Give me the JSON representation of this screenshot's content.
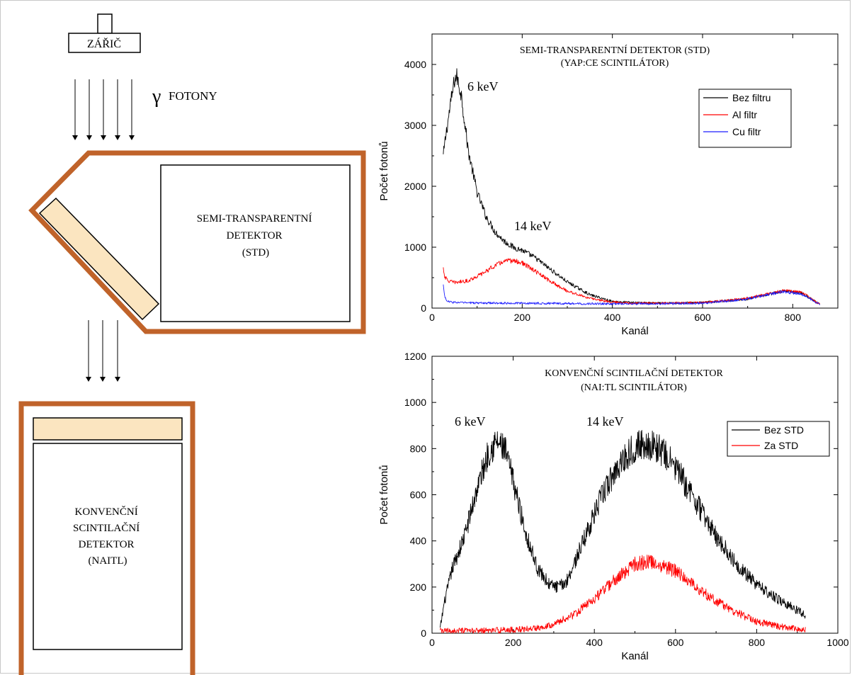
{
  "diagram": {
    "source_label": "ZÁŘIČ",
    "gamma_symbol": "γ",
    "gamma_label": "FOTONY",
    "std_box_lines": [
      "SEMI-TRANSPARENTNÍ",
      "DETEKTOR",
      "(STD)"
    ],
    "conv_box_lines": [
      "KONVENČNÍ",
      "SCINTILAČNÍ",
      "DETEKTOR",
      "(NAITL)"
    ],
    "colors": {
      "housing": "#c0632a",
      "crystal": "#fbe5c0",
      "outline": "#000000"
    }
  },
  "chart_data": [
    {
      "type": "line",
      "title": "SEMI-TRANSPARENTNÍ DETEKTOR (STD)",
      "subtitle": "(YAP:CE SCINTILÁTOR)",
      "xlabel": "Kanál",
      "ylabel": "Počet fotonů",
      "xlim": [
        0,
        900
      ],
      "ylim": [
        0,
        4500
      ],
      "xticks": [
        0,
        200,
        400,
        600,
        800
      ],
      "yticks": [
        0,
        1000,
        2000,
        3000,
        4000
      ],
      "legend_position": "top-right",
      "annotations": [
        "6 keV",
        "14 keV"
      ],
      "series": [
        {
          "name": "Bez filtru",
          "color": "#000000",
          "x": [
            25,
            30,
            40,
            50,
            55,
            65,
            80,
            100,
            120,
            140,
            160,
            180,
            200,
            230,
            260,
            300,
            350,
            400,
            450,
            500,
            600,
            700,
            750,
            780,
            820,
            860
          ],
          "y": [
            2500,
            2800,
            3300,
            3750,
            3800,
            3500,
            2600,
            1900,
            1500,
            1250,
            1100,
            1000,
            950,
            820,
            650,
            430,
            220,
            110,
            90,
            80,
            90,
            150,
            230,
            280,
            250,
            60
          ]
        },
        {
          "name": "Al filtr",
          "color": "#ff0000",
          "x": [
            25,
            28,
            35,
            50,
            80,
            110,
            140,
            160,
            180,
            200,
            230,
            260,
            300,
            350,
            400,
            450,
            500,
            600,
            700,
            750,
            780,
            820,
            860
          ],
          "y": [
            660,
            520,
            450,
            420,
            450,
            560,
            700,
            770,
            780,
            740,
            600,
            450,
            280,
            160,
            100,
            80,
            80,
            90,
            160,
            240,
            290,
            260,
            60
          ]
        },
        {
          "name": "Cu filtr",
          "color": "#1f1fff",
          "x": [
            25,
            28,
            32,
            40,
            60,
            100,
            200,
            300,
            400,
            500,
            600,
            700,
            750,
            780,
            820,
            860
          ],
          "y": [
            380,
            200,
            120,
            100,
            90,
            85,
            80,
            75,
            70,
            70,
            80,
            150,
            230,
            270,
            230,
            60
          ]
        }
      ]
    },
    {
      "type": "line",
      "title": "KONVENČNÍ SCINTILAČNÍ DETEKTOR",
      "subtitle": "(NAI:TL SCINTILÁTOR)",
      "xlabel": "Kanál",
      "ylabel": "Počet fotonů",
      "xlim": [
        0,
        1000
      ],
      "ylim": [
        0,
        1200
      ],
      "xticks": [
        0,
        200,
        400,
        600,
        800,
        1000
      ],
      "yticks": [
        0,
        200,
        400,
        600,
        800,
        1000,
        1200
      ],
      "legend_position": "top-right",
      "annotations": [
        "6 keV",
        "14 keV"
      ],
      "series": [
        {
          "name": "Bez STD",
          "color": "#000000",
          "x": [
            20,
            30,
            50,
            80,
            110,
            140,
            160,
            180,
            200,
            230,
            260,
            290,
            310,
            330,
            350,
            380,
            420,
            460,
            500,
            530,
            560,
            600,
            650,
            700,
            750,
            800,
            850,
            900,
            920
          ],
          "y": [
            20,
            130,
            280,
            420,
            620,
            790,
            830,
            790,
            660,
            440,
            280,
            210,
            200,
            220,
            300,
            430,
            600,
            730,
            810,
            820,
            800,
            720,
            570,
            420,
            300,
            210,
            150,
            100,
            80
          ]
        },
        {
          "name": "Za STD",
          "color": "#ff0000",
          "x": [
            20,
            100,
            200,
            250,
            300,
            350,
            400,
            450,
            500,
            530,
            560,
            600,
            650,
            700,
            750,
            800,
            850,
            900,
            920
          ],
          "y": [
            10,
            10,
            15,
            20,
            40,
            80,
            150,
            230,
            300,
            310,
            300,
            270,
            200,
            140,
            90,
            50,
            30,
            20,
            15
          ]
        }
      ]
    }
  ]
}
